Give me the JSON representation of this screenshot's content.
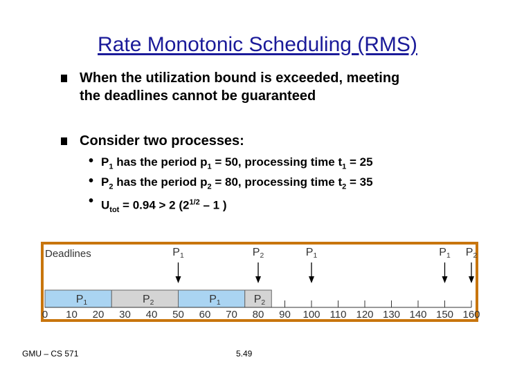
{
  "title": "Rate Monotonic Scheduling (RMS)",
  "bullets": [
    {
      "line1": "When the utilization bound is exceeded, meeting",
      "line2": "the deadlines cannot be guaranteed"
    },
    {
      "line1": "Consider two processes:"
    }
  ],
  "subbullets": [
    {
      "p": "P",
      "p_sub": "1",
      "mid": " has the period p",
      "per_sub": "1",
      "mid2": " = 50, processing time t",
      "t_sub": "1",
      "end": " = 25"
    },
    {
      "p": "P",
      "p_sub": "2",
      "mid": " has the period p",
      "per_sub": "2",
      "mid2": "  = 80, processing time t",
      "t_sub": "2",
      "end": " = 35"
    },
    {
      "u": " U",
      "u_sub": "tot",
      "u_mid": " = 0.94 > 2 (2",
      "u_sup": "1/2",
      "u_end": " – 1 )"
    }
  ],
  "chart": {
    "deadlines_label": "Deadlines",
    "deadline_markers": [
      {
        "label": "P",
        "sub": "1",
        "time": 50
      },
      {
        "label": "P",
        "sub": "2",
        "time": 80
      },
      {
        "label": "P",
        "sub": "1",
        "time": 100
      },
      {
        "label": "P",
        "sub": "1",
        "time": 150
      },
      {
        "label": "P",
        "sub": "2",
        "time": 160
      }
    ],
    "blocks": [
      {
        "label": "P",
        "sub": "1",
        "start": 0,
        "end": 25,
        "color": "#aad4f2"
      },
      {
        "label": "P",
        "sub": "2",
        "start": 25,
        "end": 50,
        "color": "#d4d4d4"
      },
      {
        "label": "P",
        "sub": "1",
        "start": 50,
        "end": 75,
        "color": "#aad4f2"
      },
      {
        "label": "P",
        "sub": "2",
        "start": 75,
        "end": 85,
        "color": "#d4d4d4"
      }
    ],
    "ticks": [
      "0",
      "10",
      "20",
      "30",
      "40",
      "50",
      "60",
      "70",
      "80",
      "90",
      "100",
      "110",
      "120",
      "130",
      "140",
      "150",
      "160"
    ],
    "time_max": 160
  },
  "footer": {
    "left": "GMU – CS 571",
    "center": "5.49"
  }
}
